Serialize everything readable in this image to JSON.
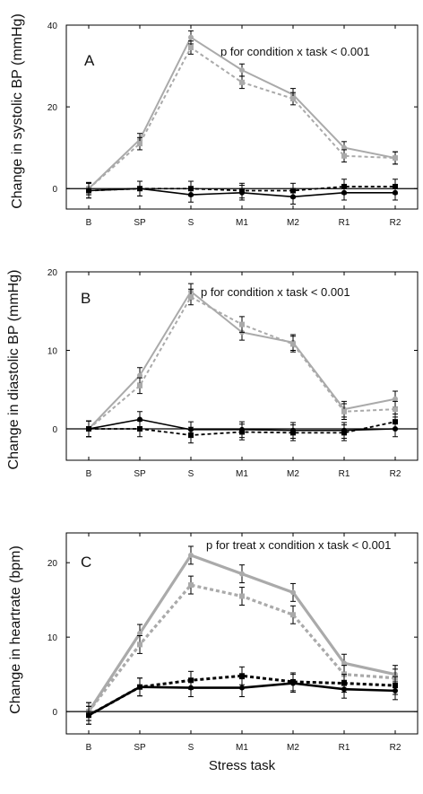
{
  "chart_data": [
    {
      "type": "line",
      "panel_label": "A",
      "annotation": "p for condition x task < 0.001",
      "xlabel": "",
      "ylabel": "Change in systolic BP (mmHg)",
      "categories": [
        "B",
        "SP",
        "S",
        "M1",
        "M2",
        "R1",
        "R2"
      ],
      "yticks": [
        0,
        20,
        40
      ],
      "ylim": [
        -5,
        40
      ],
      "zero_line": true,
      "series": [
        {
          "style": "grey-solid",
          "values": [
            0,
            12,
            37,
            29,
            23,
            10,
            7.5
          ],
          "errors": [
            1.5,
            1.5,
            1.6,
            1.5,
            1.5,
            1.5,
            1.5
          ]
        },
        {
          "style": "grey-dashed",
          "values": [
            0,
            11,
            34.5,
            26,
            22,
            8,
            7.5
          ],
          "errors": [
            1.5,
            1.5,
            1.6,
            1.5,
            1.5,
            1.5,
            1.5
          ]
        },
        {
          "style": "black-solid",
          "values": [
            -0.5,
            0,
            -1.5,
            -1,
            -2,
            -1,
            -1
          ],
          "errors": [
            1.8,
            1.8,
            1.8,
            1.8,
            1.8,
            1.8,
            1.8
          ]
        },
        {
          "style": "black-dashed",
          "values": [
            -0.5,
            0,
            0,
            -0.5,
            -0.5,
            0.5,
            0.5
          ],
          "errors": [
            1.8,
            1.8,
            1.8,
            1.8,
            1.8,
            1.8,
            1.8
          ]
        }
      ]
    },
    {
      "type": "line",
      "panel_label": "B",
      "annotation": "p for condition x task < 0.001",
      "xlabel": "",
      "ylabel": "Change in diastolic BP (mmHg)",
      "categories": [
        "B",
        "SP",
        "S",
        "M1",
        "M2",
        "R1",
        "R2"
      ],
      "yticks": [
        0,
        10,
        20
      ],
      "ylim": [
        -4,
        20
      ],
      "zero_line": true,
      "series": [
        {
          "style": "grey-solid",
          "values": [
            0,
            6.8,
            17.5,
            12.3,
            11,
            2.5,
            3.8
          ],
          "errors": [
            1,
            1,
            1,
            1,
            1,
            1,
            1
          ]
        },
        {
          "style": "grey-dashed",
          "values": [
            0,
            5.5,
            16.8,
            13.3,
            10.8,
            2.2,
            2.5
          ],
          "errors": [
            1,
            1,
            1,
            1,
            1,
            1,
            1
          ]
        },
        {
          "style": "black-solid",
          "values": [
            0,
            1.2,
            -0.1,
            -0.1,
            -0.2,
            -0.2,
            0
          ],
          "errors": [
            1,
            1,
            1,
            1,
            1,
            1,
            1
          ]
        },
        {
          "style": "black-dashed",
          "values": [
            0,
            0,
            -0.8,
            -0.4,
            -0.5,
            -0.5,
            0.9
          ],
          "errors": [
            1,
            1,
            1,
            1,
            1,
            1,
            1
          ]
        }
      ]
    },
    {
      "type": "line",
      "panel_label": "C",
      "annotation": "p for treat x condition x task < 0.001",
      "xlabel": "Stress task",
      "ylabel": "Change in heartrate (bpm)",
      "categories": [
        "B",
        "SP",
        "S",
        "M1",
        "M2",
        "R1",
        "R2"
      ],
      "yticks": [
        0,
        10,
        20
      ],
      "ylim": [
        -3,
        24
      ],
      "zero_line": true,
      "series": [
        {
          "style": "grey-solid-thick",
          "values": [
            0,
            10.5,
            21,
            18.5,
            16,
            6.5,
            5
          ],
          "errors": [
            1.2,
            1.2,
            1.2,
            1.2,
            1.2,
            1.2,
            1.2
          ]
        },
        {
          "style": "grey-dashed-thick",
          "values": [
            0,
            9,
            17,
            15.5,
            13,
            5,
            4.5
          ],
          "errors": [
            1.2,
            1.2,
            1.2,
            1.2,
            1.2,
            1.2,
            1.2
          ]
        },
        {
          "style": "black-solid-thick",
          "values": [
            -0.5,
            3.3,
            3.2,
            3.2,
            3.8,
            3,
            2.8
          ],
          "errors": [
            1.2,
            1.2,
            1.2,
            1.2,
            1.2,
            1.2,
            1.2
          ]
        },
        {
          "style": "black-dashed-thick",
          "values": [
            -0.5,
            3.3,
            4.2,
            4.8,
            4,
            3.8,
            3.5
          ],
          "errors": [
            1.2,
            1.2,
            1.2,
            1.2,
            1.2,
            1.2,
            1.2
          ]
        }
      ]
    }
  ]
}
